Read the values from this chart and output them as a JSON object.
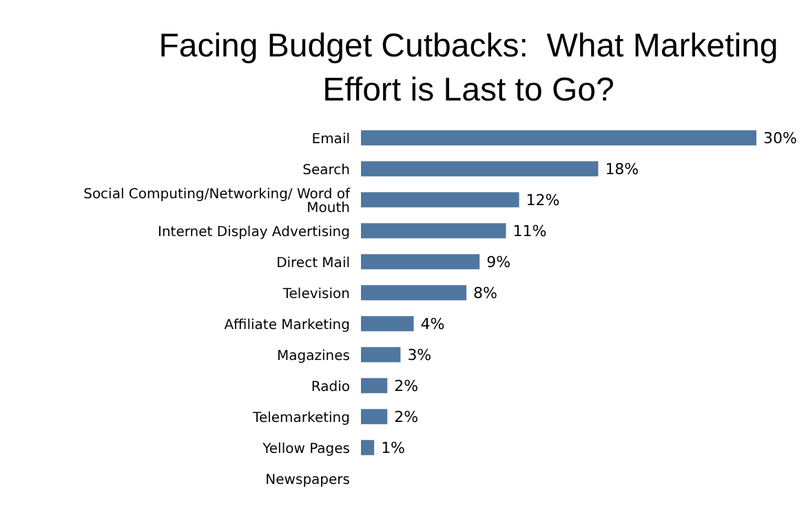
{
  "chart_data": {
    "type": "bar",
    "orientation": "horizontal",
    "title": "Facing Budget Cutbacks:  What Marketing Effort is Last to Go?",
    "categories": [
      "Email",
      "Search",
      "Social Computing/Networking/ Word of Mouth",
      "Internet Display Advertising",
      "Direct Mail",
      "Television",
      "Affiliate Marketing",
      "Magazines",
      "Radio",
      "Telemarketing",
      "Yellow Pages",
      "Newspapers"
    ],
    "values": [
      30,
      18,
      12,
      11,
      9,
      8,
      4,
      3,
      2,
      2,
      1,
      0
    ],
    "value_labels": [
      "30%",
      "18%",
      "12%",
      "11%",
      "9%",
      "8%",
      "4%",
      "3%",
      "2%",
      "2%",
      "1%",
      null
    ],
    "color": "#4f77a0"
  }
}
